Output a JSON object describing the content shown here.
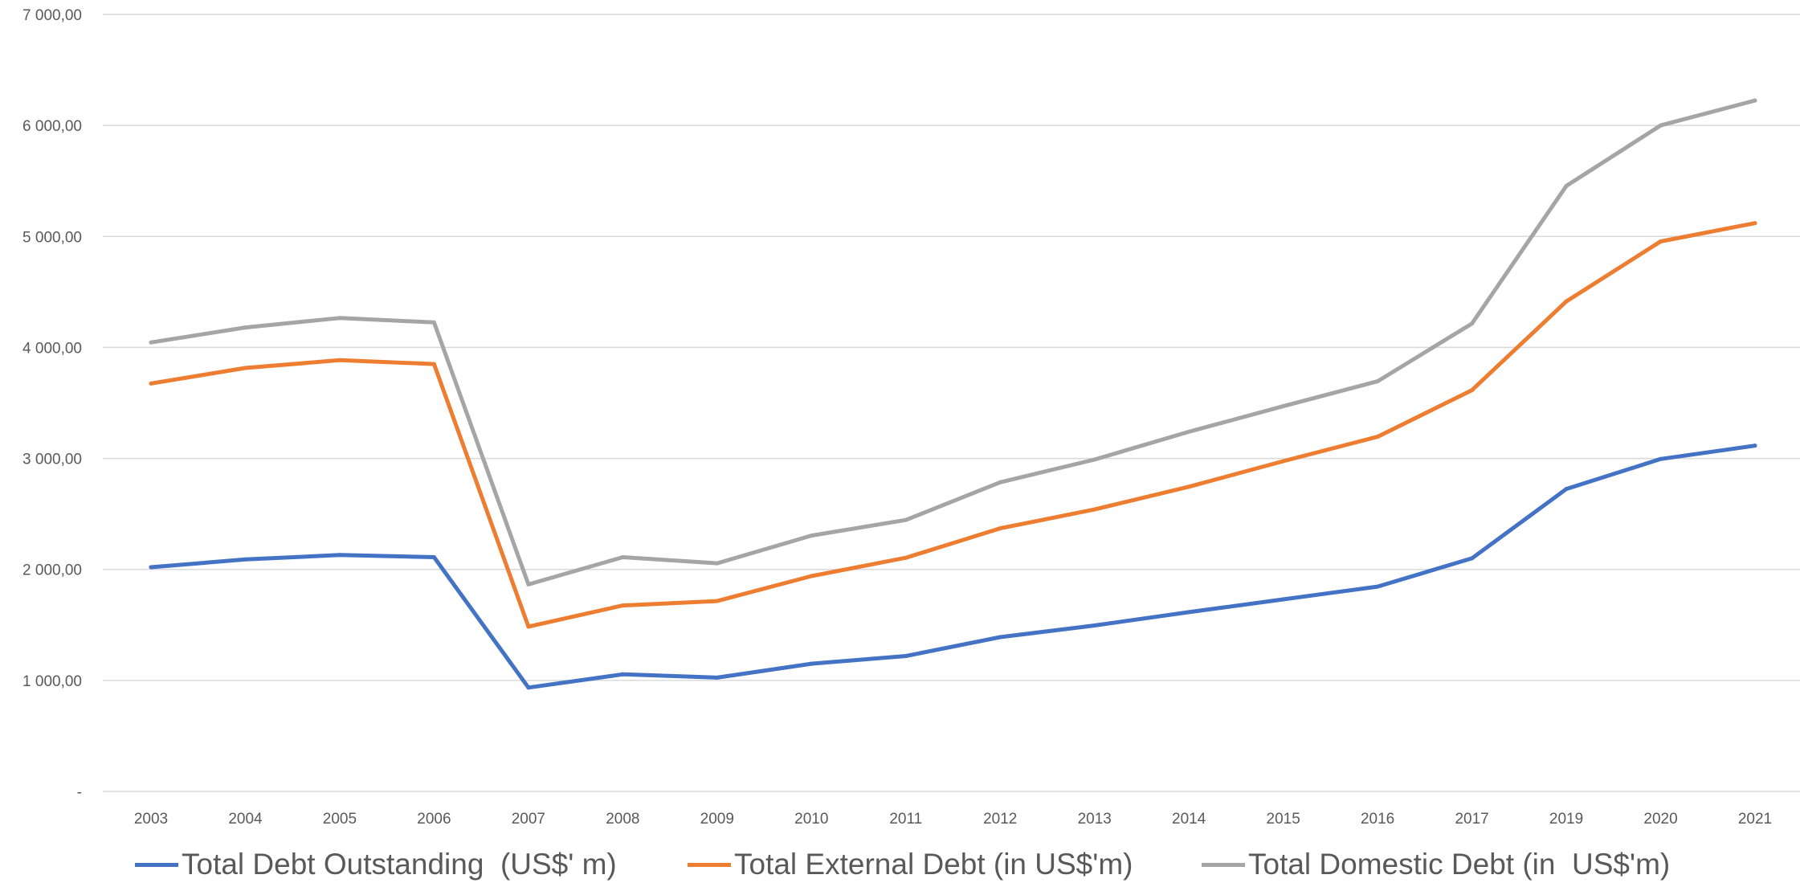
{
  "chart_data": {
    "type": "line",
    "categories": [
      "2003",
      "2004",
      "2005",
      "2006",
      "2007",
      "2008",
      "2009",
      "2010",
      "2011",
      "2012",
      "2013",
      "2014",
      "2015",
      "2016",
      "2017",
      "2019",
      "2020",
      "2021"
    ],
    "series": [
      {
        "name": "Total Debt Outstanding  (US$' m)",
        "color": "#4472C4",
        "values": [
          2020,
          2090,
          2130,
          2110,
          935,
          1055,
          1025,
          1150,
          1220,
          1390,
          1495,
          1615,
          1730,
          1845,
          2100,
          2725,
          2995,
          3115
        ]
      },
      {
        "name": "Total External Debt (in US$'m)",
        "color": "#ED7D31",
        "values": [
          3675,
          3815,
          3885,
          3850,
          1485,
          1675,
          1715,
          1940,
          2105,
          2370,
          2540,
          2745,
          2975,
          3195,
          3615,
          4415,
          4955,
          5120
        ]
      },
      {
        "name": "Total Domestic Debt (in  US$'m)",
        "color": "#A5A5A5",
        "values": [
          4045,
          4180,
          4265,
          4225,
          1865,
          2110,
          2055,
          2305,
          2445,
          2785,
          2990,
          3240,
          3470,
          3695,
          4215,
          5455,
          6000,
          6225
        ]
      }
    ],
    "y_ticks": [
      {
        "value": 0,
        "label": "-"
      },
      {
        "value": 1000,
        "label": "1 000,00"
      },
      {
        "value": 2000,
        "label": "2 000,00"
      },
      {
        "value": 3000,
        "label": "3 000,00"
      },
      {
        "value": 4000,
        "label": "4 000,00"
      },
      {
        "value": 5000,
        "label": "5 000,00"
      },
      {
        "value": 6000,
        "label": "6 000,00"
      },
      {
        "value": 7000,
        "label": "7 000,00"
      }
    ],
    "ylim": [
      0,
      7000
    ],
    "grid": true,
    "gridline_color": "#D9D9D9",
    "legend_position": "bottom",
    "title": "",
    "xlabel": "",
    "ylabel": ""
  }
}
